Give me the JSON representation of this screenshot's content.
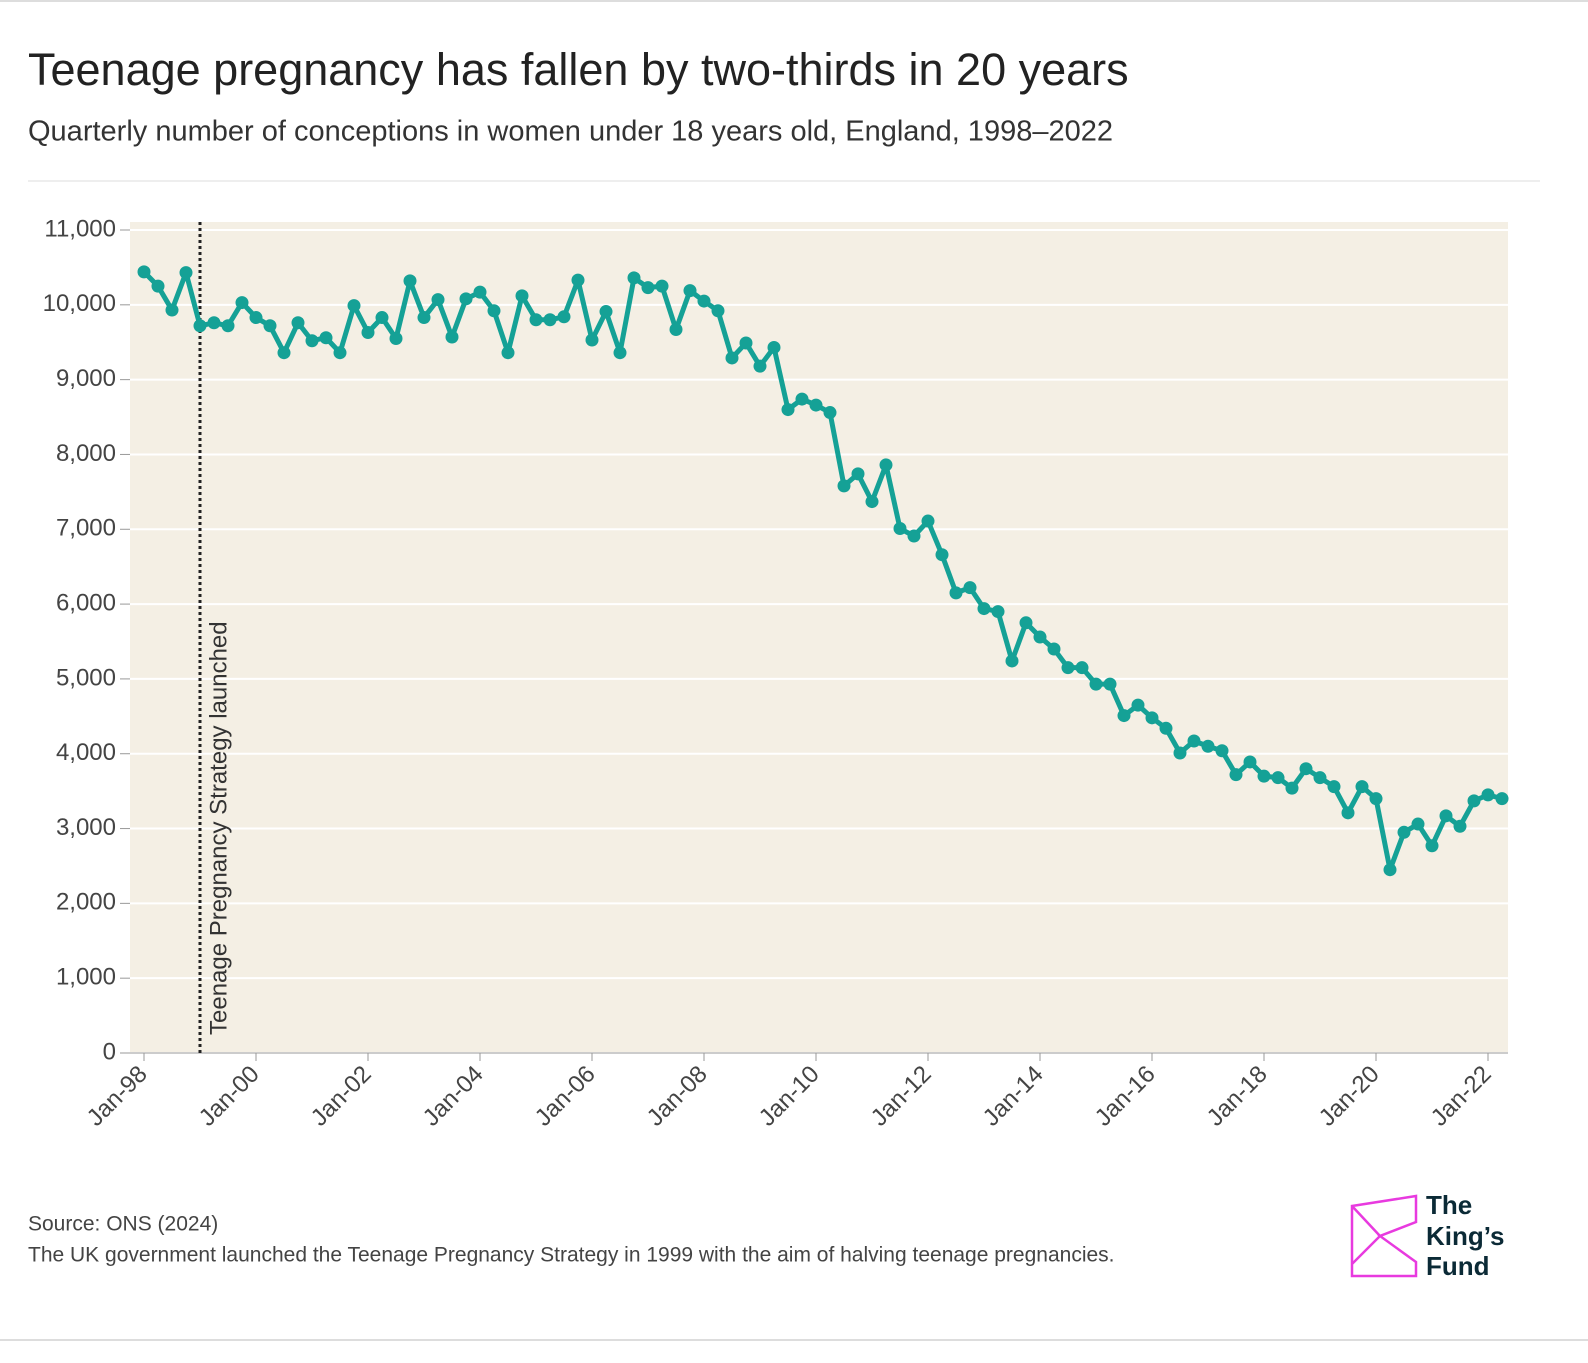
{
  "chart_data": {
    "type": "line",
    "title": "Teenage pregnancy has fallen by two-thirds in 20 years",
    "subtitle": "Quarterly number of conceptions in women under 18 years old, England, 1998–2022",
    "categories": [
      "Jan-98",
      null,
      null,
      null,
      null,
      null,
      null,
      null,
      "Jan-00",
      null,
      null,
      null,
      null,
      null,
      null,
      null,
      "Jan-02",
      null,
      null,
      null,
      null,
      null,
      null,
      null,
      "Jan-04",
      null,
      null,
      null,
      null,
      null,
      null,
      null,
      "Jan-06",
      null,
      null,
      null,
      null,
      null,
      null,
      null,
      "Jan-08",
      null,
      null,
      null,
      null,
      null,
      null,
      null,
      "Jan-10",
      null,
      null,
      null,
      null,
      null,
      null,
      null,
      "Jan-12",
      null,
      null,
      null,
      null,
      null,
      null,
      null,
      "Jan-14",
      null,
      null,
      null,
      null,
      null,
      null,
      null,
      "Jan-16",
      null,
      null,
      null,
      null,
      null,
      null,
      null,
      "Jan-18",
      null,
      null,
      null,
      null,
      null,
      null,
      null,
      "Jan-20",
      null,
      null,
      null,
      null,
      null,
      null,
      null,
      "Jan-22",
      null
    ],
    "series": [
      {
        "color": "#15a196",
        "values": [
          10440,
          10250,
          9930,
          10430,
          9720,
          9760,
          9720,
          10030,
          9830,
          9720,
          9360,
          9760,
          9520,
          9560,
          9360,
          9990,
          9630,
          9830,
          9550,
          10320,
          9830,
          10070,
          9570,
          10080,
          10170,
          9920,
          9360,
          10120,
          9800,
          9800,
          9840,
          10330,
          9530,
          9910,
          9360,
          10360,
          10230,
          10250,
          9670,
          10190,
          10050,
          9920,
          9290,
          9490,
          9180,
          9430,
          8600,
          8740,
          8660,
          8560,
          7580,
          7740,
          7370,
          7860,
          7010,
          6910,
          7110,
          6660,
          6150,
          6220,
          5940,
          5900,
          5240,
          5750,
          5560,
          5400,
          5150,
          5150,
          4930,
          4930,
          4510,
          4650,
          4480,
          4340,
          4010,
          4170,
          4100,
          4040,
          3720,
          3890,
          3700,
          3680,
          3540,
          3800,
          3680,
          3560,
          3210,
          3560,
          3400,
          2450,
          2950,
          3060,
          2770,
          3170,
          3030,
          3370,
          3450,
          3400
        ]
      }
    ],
    "ylim": [
      0,
      11000
    ],
    "yticks": [
      0,
      {
        "value": 1000,
        "label": "1,000"
      },
      {
        "value": 2000,
        "label": "2,000"
      },
      {
        "value": 3000,
        "label": "3,000"
      },
      {
        "value": 4000,
        "label": "4,000"
      },
      {
        "value": 5000,
        "label": "5,000"
      },
      {
        "value": 6000,
        "label": "6,000"
      },
      {
        "value": 7000,
        "label": "7,000"
      },
      {
        "value": 8000,
        "label": "8,000"
      },
      {
        "value": 9000,
        "label": "9,000"
      },
      {
        "value": 10000,
        "label": "10,000"
      },
      {
        "value": 11000,
        "label": "11,000"
      }
    ],
    "grid": true,
    "annotation": {
      "text": "Teenage Pregnancy Strategy launched",
      "category_index": 4
    },
    "source": "Source: ONS (2024)",
    "note": "The UK government launched the Teenage Pregnancy Strategy in 1999 with the aim of halving teenage pregnancies.",
    "logo": [
      "The",
      "King’s",
      "Fund"
    ]
  }
}
